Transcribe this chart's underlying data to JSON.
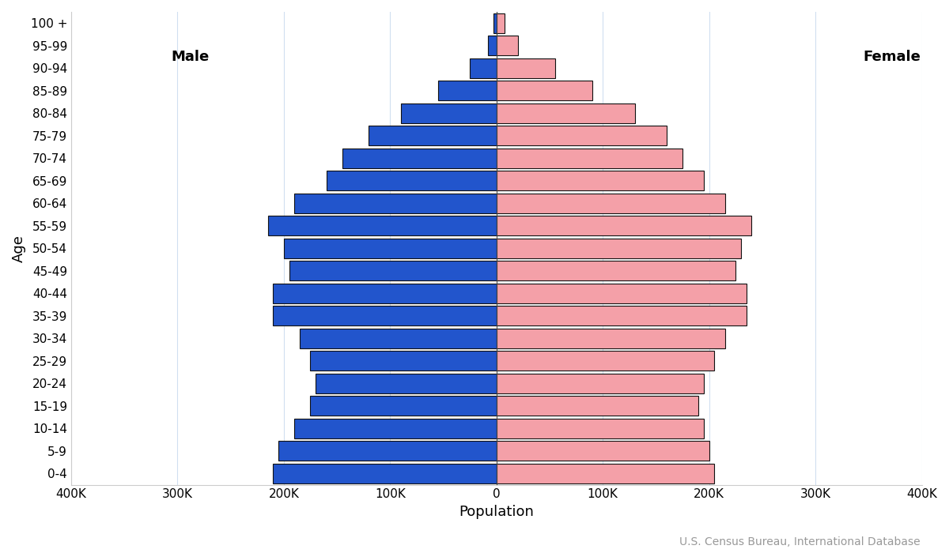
{
  "age_groups": [
    "0-4",
    "5-9",
    "10-14",
    "15-19",
    "20-24",
    "25-29",
    "30-34",
    "35-39",
    "40-44",
    "45-49",
    "50-54",
    "55-59",
    "60-64",
    "65-69",
    "70-74",
    "75-79",
    "80-84",
    "85-89",
    "90-94",
    "95-99",
    "100 +"
  ],
  "male": [
    210000,
    205000,
    190000,
    175000,
    170000,
    175000,
    185000,
    210000,
    210000,
    195000,
    200000,
    215000,
    190000,
    160000,
    145000,
    120000,
    90000,
    55000,
    25000,
    8000,
    3000
  ],
  "female": [
    205000,
    200000,
    195000,
    190000,
    195000,
    205000,
    215000,
    235000,
    235000,
    225000,
    230000,
    240000,
    215000,
    195000,
    175000,
    160000,
    130000,
    90000,
    55000,
    20000,
    8000
  ],
  "male_color": "#2255CC",
  "female_color": "#F4A0A8",
  "bar_edge_color": "#111111",
  "bar_edge_width": 0.8,
  "background_color": "#FFFFFF",
  "grid_color": "#D0DFF0",
  "xlabel": "Population",
  "ylabel": "Age",
  "male_label": "Male",
  "female_label": "Female",
  "source_text": "U.S. Census Bureau, International Database",
  "xlim": 400000,
  "all_ticks": [
    -400000,
    -300000,
    -200000,
    -100000,
    0,
    100000,
    200000,
    300000,
    400000
  ],
  "tick_labels": [
    "400K",
    "300K",
    "200K",
    "100K",
    "0",
    "100K",
    "200K",
    "300K",
    "400K"
  ],
  "label_fontsize": 13,
  "tick_fontsize": 11,
  "gender_label_fontsize": 13,
  "source_fontsize": 10
}
